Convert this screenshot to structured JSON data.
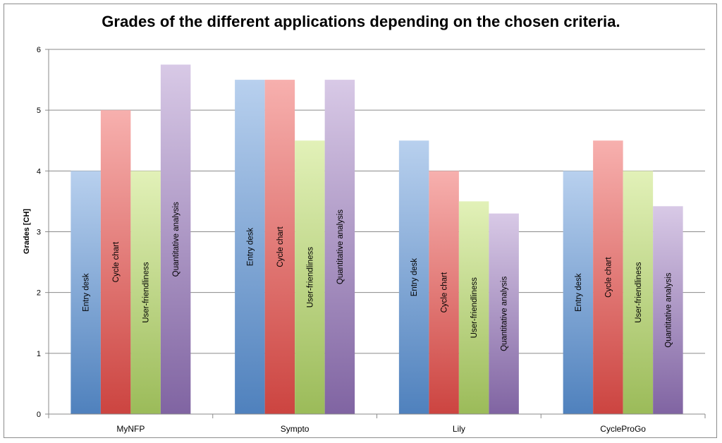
{
  "chart_data": {
    "type": "bar",
    "title": "Grades of the different applications depending on the chosen criteria.",
    "xlabel": "",
    "ylabel": "Grades [CH]",
    "ylim": [
      0,
      6
    ],
    "yticks": [
      0,
      1,
      2,
      3,
      4,
      5,
      6
    ],
    "grid": true,
    "legend": "none (series names shown inside bars)",
    "categories": [
      "MyNFP",
      "Sympto",
      "Lily",
      "CycleProGo"
    ],
    "series": [
      {
        "name": "Entry desk",
        "color": "#4f81bd",
        "light": "#b8d0ee",
        "values": [
          4,
          5.5,
          4.5,
          4
        ]
      },
      {
        "name": "Cycle chart",
        "color": "#cc4440",
        "light": "#f7b0ae",
        "values": [
          5,
          5.5,
          4,
          4.5
        ]
      },
      {
        "name": "User-friendliness",
        "color": "#9bbb59",
        "light": "#e2f1b8",
        "values": [
          4,
          4.5,
          3.5,
          4
        ]
      },
      {
        "name": "Quantitative analysis",
        "color": "#8064a2",
        "light": "#d8c9e6",
        "values": [
          5.75,
          5.5,
          3.3,
          3.42
        ]
      }
    ]
  }
}
